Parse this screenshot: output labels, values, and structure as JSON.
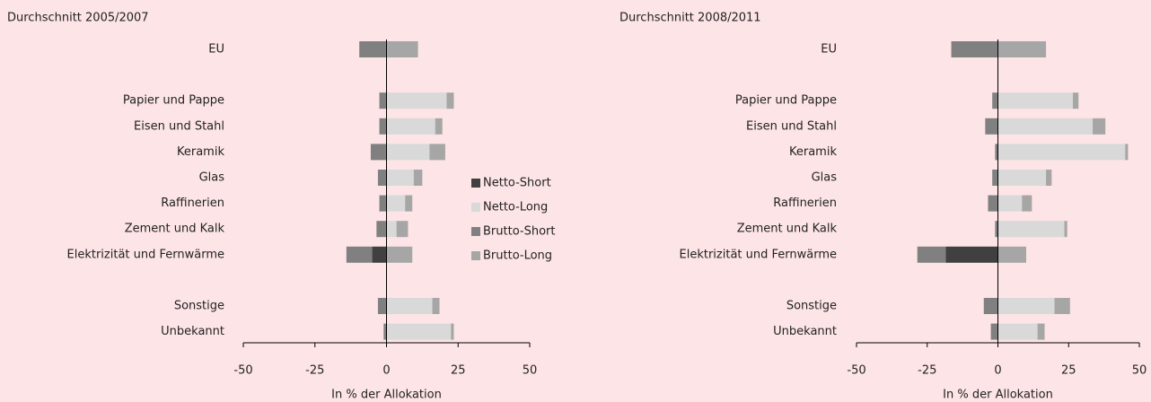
{
  "chart_data": [
    {
      "type": "bar",
      "orientation": "horizontal",
      "stacked": "diverging",
      "title": "Durchschnitt 2005/2007",
      "xlabel": "In % der Allokation",
      "categories": [
        "EU",
        null,
        "Papier und Pappe",
        "Eisen und Stahl",
        "Keramik",
        "Glas",
        "Raffinerien",
        "Zement und Kalk",
        "Elektrizität und Fernwärme",
        null,
        "Sonstige",
        "Unbekannt"
      ],
      "series": [
        {
          "name": "Netto-Short",
          "color": "#404040",
          "values": [
            0,
            null,
            0,
            0,
            0,
            0,
            0,
            0,
            -5,
            null,
            0,
            0
          ]
        },
        {
          "name": "Netto-Long",
          "color": "#d9d9d9",
          "values": [
            0,
            null,
            21,
            17,
            15,
            9.5,
            6.5,
            3.5,
            0,
            null,
            16,
            22.5
          ]
        },
        {
          "name": "Brutto-Short",
          "color": "#808080",
          "values": [
            -9.5,
            null,
            -2.5,
            -2.5,
            -5.5,
            -3,
            -2.5,
            -3.5,
            -9,
            null,
            -3,
            -1
          ]
        },
        {
          "name": "Brutto-Long",
          "color": "#a6a6a6",
          "values": [
            11,
            null,
            2.5,
            2.5,
            5.5,
            3,
            2.5,
            4,
            9,
            null,
            2.5,
            1
          ]
        }
      ],
      "xlim": [
        -50,
        50
      ],
      "xticks": [
        -50,
        -25,
        0,
        25,
        50
      ],
      "legend": "right"
    },
    {
      "type": "bar",
      "orientation": "horizontal",
      "stacked": "diverging",
      "title": "Durchschnitt 2008/2011",
      "xlabel": "In % der Allokation",
      "categories": [
        "EU",
        null,
        "Papier und Pappe",
        "Eisen und Stahl",
        "Keramik",
        "Glas",
        "Raffinerien",
        "Zement und Kalk",
        "Elektrizität und Fernwärme",
        null,
        "Sonstige",
        "Unbekannt"
      ],
      "series": [
        {
          "color": "#404040",
          "values": [
            0,
            null,
            0,
            0,
            0,
            0,
            0,
            0,
            -18.5,
            null,
            0,
            0
          ]
        },
        {
          "color": "#d9d9d9",
          "values": [
            0,
            null,
            26.5,
            33.5,
            45,
            17,
            8.5,
            23.5,
            0,
            null,
            20,
            14
          ]
        },
        {
          "color": "#808080",
          "values": [
            -16.5,
            null,
            -2,
            -4.5,
            -1,
            -2,
            -3.5,
            -1,
            -10,
            null,
            -5,
            -2.5
          ]
        },
        {
          "color": "#a6a6a6",
          "values": [
            17,
            null,
            2,
            4.5,
            1,
            2,
            3.5,
            1,
            10,
            null,
            5.5,
            2.5
          ]
        }
      ],
      "xlim": [
        -50,
        50
      ],
      "xticks": [
        -50,
        -25,
        0,
        25,
        50
      ]
    }
  ]
}
